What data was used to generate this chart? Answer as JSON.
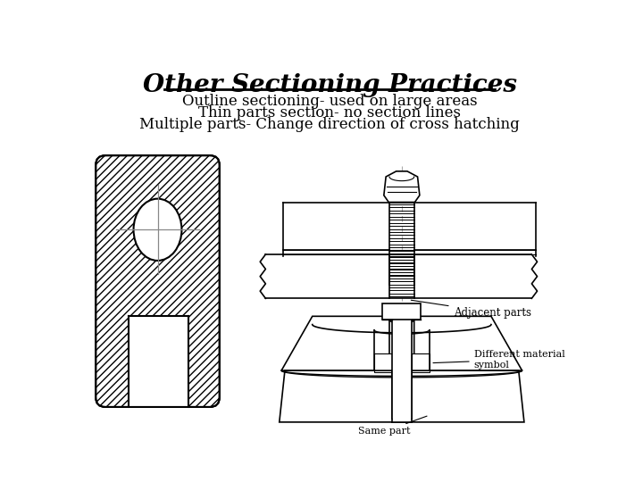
{
  "title": "Other Sectioning Practices",
  "subtitle_lines": [
    "Outline sectioning- used on large areas",
    "Thin parts section- no section lines",
    "Multiple parts- Change direction of cross hatching"
  ],
  "bg_color": "#ffffff",
  "text_color": "#000000",
  "title_fontsize": 20,
  "subtitle_fontsize": 12,
  "label_adjacent": "Adjacent parts",
  "label_diff_material": "Different material\nsymbol",
  "label_same_part": "Same part"
}
